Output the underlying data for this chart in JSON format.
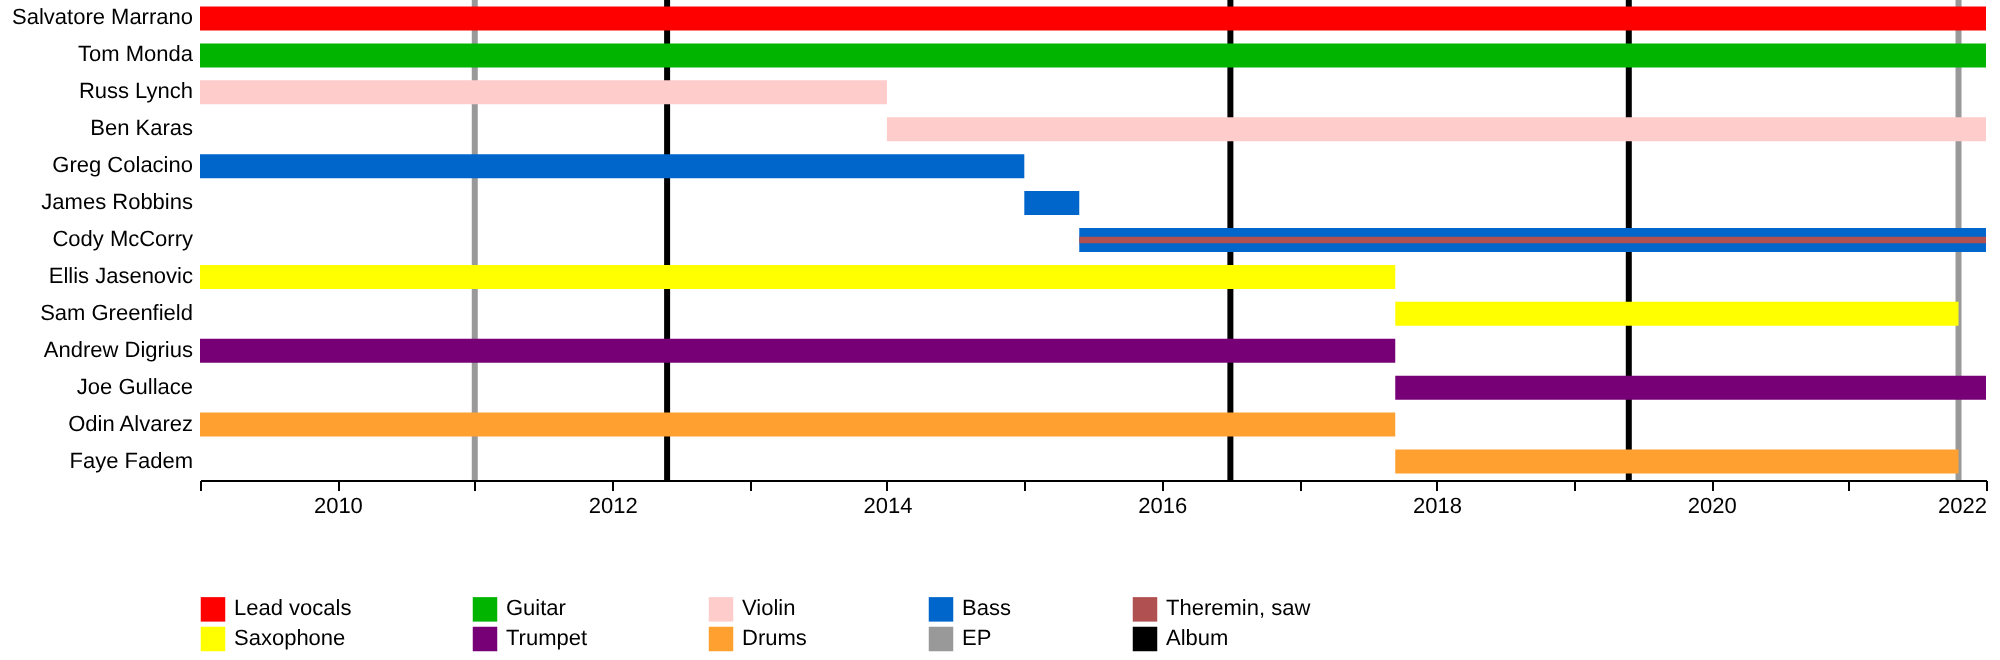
{
  "chart_data": {
    "type": "bar",
    "orientation": "horizontal",
    "categories": [
      "Salvatore Marrano",
      "Tom Monda",
      "Russ Lynch",
      "Ben Karas",
      "Greg Colacino",
      "James Robbins",
      "Cody McCorry",
      "Ellis Jasenovic",
      "Sam Greenfield",
      "Andrew Digrius",
      "Joe Gullace",
      "Odin Alvarez",
      "Faye Fadem"
    ],
    "series": [
      {
        "name": "Lead vocals",
        "color": "#ff0000",
        "base": [
          2009,
          null,
          null,
          null,
          null,
          null,
          null,
          null,
          null,
          null,
          null,
          null,
          null
        ],
        "values": [
          13,
          null,
          null,
          null,
          null,
          null,
          null,
          null,
          null,
          null,
          null,
          null,
          null
        ]
      },
      {
        "name": "Guitar",
        "color": "#00b400",
        "base": [
          null,
          2009,
          null,
          null,
          null,
          null,
          null,
          null,
          null,
          null,
          null,
          null,
          null
        ],
        "values": [
          null,
          13,
          null,
          null,
          null,
          null,
          null,
          null,
          null,
          null,
          null,
          null,
          null
        ]
      },
      {
        "name": "Violin",
        "color": "#ffcccc",
        "base": [
          null,
          null,
          2009,
          2014,
          null,
          null,
          null,
          null,
          null,
          null,
          null,
          null,
          null
        ],
        "values": [
          null,
          null,
          5,
          8,
          null,
          null,
          null,
          null,
          null,
          null,
          null,
          null,
          null
        ]
      },
      {
        "name": "Bass",
        "color": "#0066cc",
        "base": [
          null,
          null,
          null,
          null,
          2009,
          2015,
          2015.4,
          null,
          null,
          null,
          null,
          null,
          null
        ],
        "values": [
          null,
          null,
          null,
          null,
          6,
          0.4,
          6.6,
          null,
          null,
          null,
          null,
          null,
          null
        ]
      },
      {
        "name": "Theremin, saw",
        "color": "#b05050",
        "base": [
          null,
          null,
          null,
          null,
          null,
          null,
          2015.4,
          null,
          null,
          null,
          null,
          null,
          null
        ],
        "values": [
          null,
          null,
          null,
          null,
          null,
          null,
          6.6,
          null,
          null,
          null,
          null,
          null,
          null
        ]
      },
      {
        "name": "Saxophone",
        "color": "#ffff00",
        "base": [
          null,
          null,
          null,
          null,
          null,
          null,
          null,
          2009,
          2017.7,
          null,
          null,
          null,
          null
        ],
        "values": [
          null,
          null,
          null,
          null,
          null,
          null,
          null,
          8.7,
          4.1,
          null,
          null,
          null,
          null
        ]
      },
      {
        "name": "Trumpet",
        "color": "#770077",
        "base": [
          null,
          null,
          null,
          null,
          null,
          null,
          null,
          null,
          null,
          2009,
          2017.7,
          null,
          null
        ],
        "values": [
          null,
          null,
          null,
          null,
          null,
          null,
          null,
          null,
          null,
          8.7,
          4.3,
          null,
          null
        ]
      },
      {
        "name": "Drums",
        "color": "#ffa030",
        "base": [
          null,
          null,
          null,
          null,
          null,
          null,
          null,
          null,
          null,
          null,
          null,
          2009,
          2017.7
        ],
        "values": [
          null,
          null,
          null,
          null,
          null,
          null,
          null,
          null,
          null,
          null,
          null,
          8.7,
          4.1
        ]
      }
    ],
    "ref_lines": [
      {
        "axis": "x",
        "value": 2011,
        "label": "EP",
        "color": "#999999"
      },
      {
        "axis": "x",
        "value": 2012.4,
        "label": "Album",
        "color": "#000000"
      },
      {
        "axis": "x",
        "value": 2016.5,
        "color": "#000000"
      },
      {
        "axis": "x",
        "value": 2019.4,
        "color": "#000000"
      },
      {
        "axis": "x",
        "value": 2021.8,
        "color": "#999999"
      }
    ],
    "xlim": [
      2009,
      2022
    ],
    "xticks": [
      {
        "value": 2009,
        "label": null
      },
      2010,
      {
        "value": 2011,
        "label": null
      },
      2012,
      {
        "value": 2013,
        "label": null
      },
      2014,
      {
        "value": 2015,
        "label": null
      },
      2016,
      {
        "value": 2017,
        "label": null
      },
      2018,
      {
        "value": 2019,
        "label": null
      },
      2020,
      {
        "value": 2021,
        "label": null
      },
      2022
    ],
    "legend": "bottom",
    "grid": false
  }
}
